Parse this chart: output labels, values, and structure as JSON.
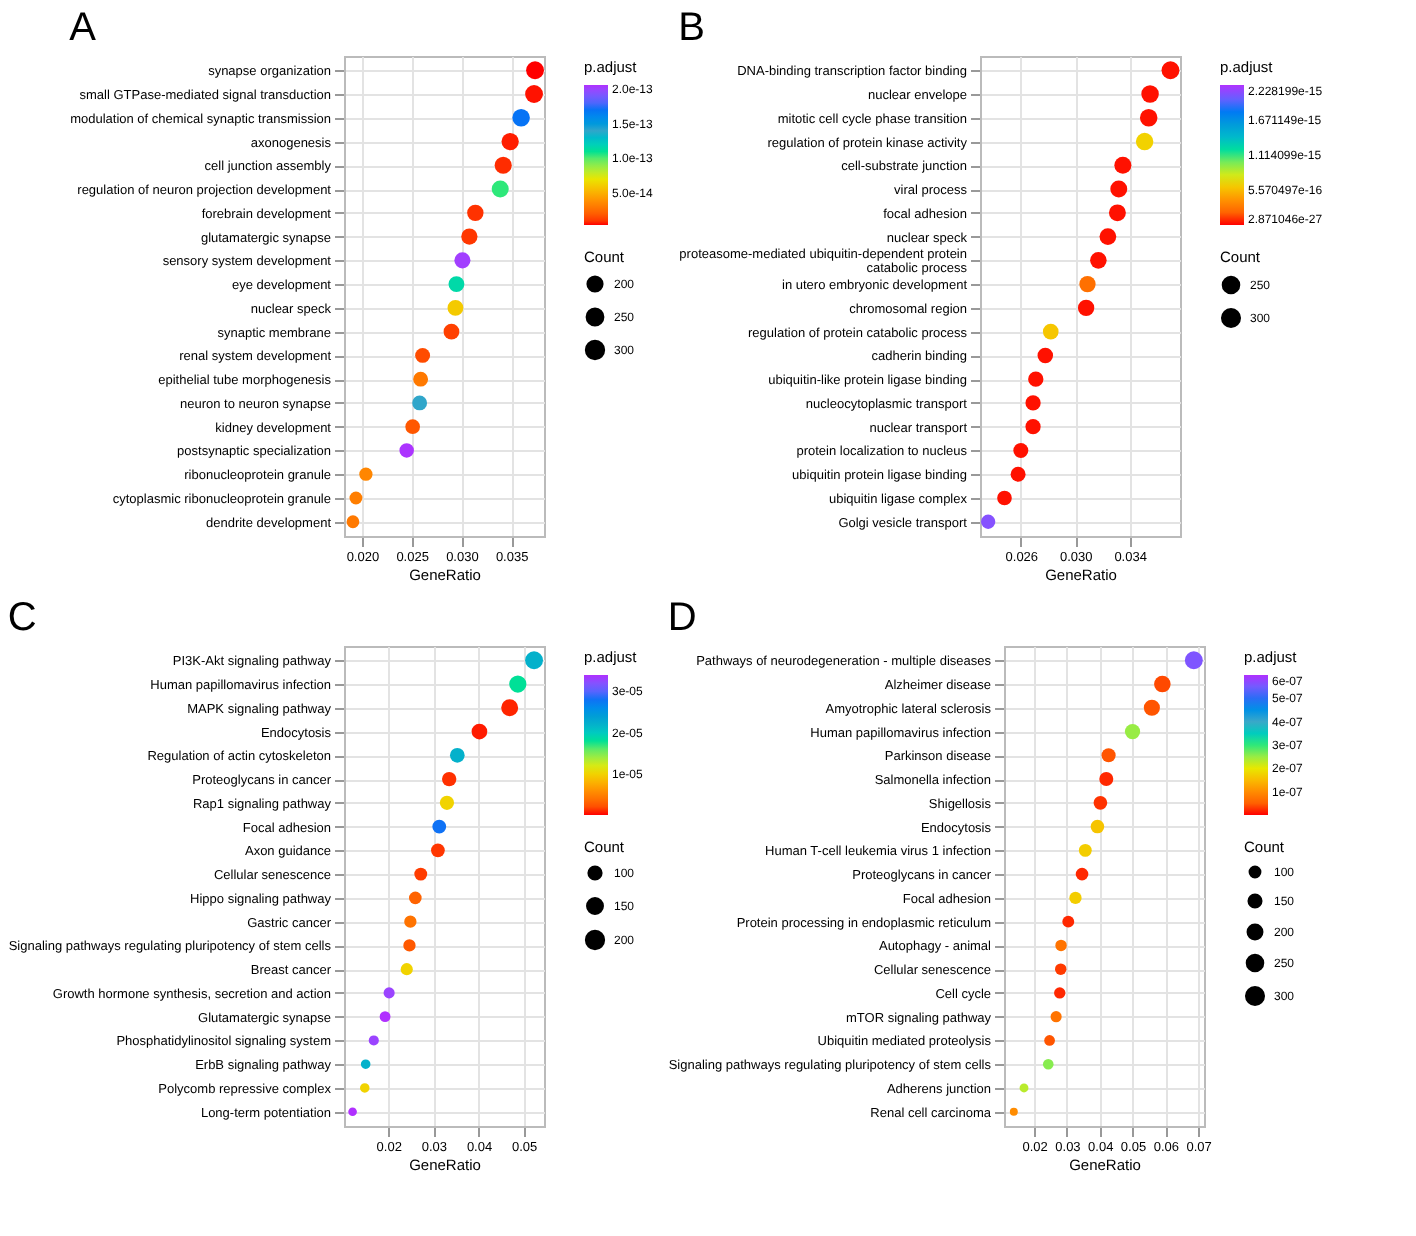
{
  "chart_data": [
    {
      "type": "scatter",
      "orientation": "horizontal",
      "title": "A",
      "xlabel": "GeneRatio",
      "clabel": "p.adjust",
      "legend_title": "Count",
      "grid": true,
      "categories": [
        "synapse organization",
        "small GTPase-mediated signal transduction",
        "modulation of chemical synaptic transmission",
        "axonogenesis",
        "cell junction assembly",
        "regulation of neuron projection development",
        "forebrain development",
        "glutamatergic synapse",
        "sensory system development",
        "eye development",
        "nuclear speck",
        "synaptic membrane",
        "renal system development",
        "epithelial tube morphogenesis",
        "neuron to neuron synapse",
        "kidney development",
        "postsynaptic specialization",
        "ribonucleoprotein granule",
        "cytoplasmic ribonucleoprotein granule",
        "dendrite development"
      ],
      "values": [
        0.0374,
        0.0373,
        0.036,
        0.0349,
        0.0342,
        0.0339,
        0.0314,
        0.0308,
        0.0301,
        0.0295,
        0.0294,
        0.029,
        0.0261,
        0.0259,
        0.0258,
        0.0251,
        0.0245,
        0.0204,
        0.0194,
        0.0191
      ],
      "sizes": [
        320,
        319,
        308,
        299,
        293,
        290,
        269,
        264,
        258,
        253,
        252,
        248,
        223,
        222,
        221,
        215,
        210,
        175,
        166,
        163
      ],
      "size_legend": [
        200,
        250,
        300
      ],
      "cvalues": [
        4e-15,
        5e-15,
        1.7e-13,
        6e-15,
        8e-15,
        1.05e-13,
        9e-15,
        1e-14,
        2.02e-13,
        1.15e-13,
        6e-14,
        1.2e-14,
        1.5e-14,
        3e-14,
        1.4e-13,
        1.8e-14,
        2.05e-13,
        3.5e-14,
        3.2e-14,
        3e-14
      ],
      "clim": [
        4e-15,
        2.06e-13
      ],
      "cticks": [
        {
          "value": 5e-14,
          "label": "5.0e-14"
        },
        {
          "value": 1e-13,
          "label": "1.0e-13"
        },
        {
          "value": 1.5e-13,
          "label": "1.5e-13"
        },
        {
          "value": 2e-13,
          "label": "2.0e-13"
        }
      ],
      "xlim": [
        0.0182,
        0.0383
      ],
      "xticks": [
        {
          "value": 0.02,
          "label": "0.020"
        },
        {
          "value": 0.025,
          "label": "0.025"
        },
        {
          "value": 0.03,
          "label": "0.030"
        },
        {
          "value": 0.035,
          "label": "0.035"
        }
      ]
    },
    {
      "type": "scatter",
      "orientation": "horizontal",
      "title": "B",
      "xlabel": "GeneRatio",
      "clabel": "p.adjust",
      "legend_title": "Count",
      "grid": true,
      "categories": [
        "DNA-binding transcription factor binding",
        "nuclear envelope",
        "mitotic cell cycle phase transition",
        "regulation of protein kinase activity",
        "cell-substrate junction",
        "viral process",
        "focal adhesion",
        "nuclear speck",
        "proteasome-mediated ubiquitin-dependent protein catabolic process",
        "in utero embryonic development",
        "chromosomal region",
        "regulation of protein catabolic process",
        "cadherin binding",
        "ubiquitin-like protein ligase binding",
        "nucleocytoplasmic transport",
        "nuclear transport",
        "protein localization to nucleus",
        "ubiquitin protein ligase binding",
        "ubiquitin ligase complex",
        "Golgi vesicle transport"
      ],
      "values": [
        0.037,
        0.0355,
        0.0354,
        0.0351,
        0.0335,
        0.0332,
        0.0331,
        0.0324,
        0.0317,
        0.0309,
        0.0308,
        0.0282,
        0.0278,
        0.0271,
        0.0269,
        0.0269,
        0.026,
        0.0258,
        0.0248,
        0.0236
      ],
      "sizes": [
        330,
        317,
        316,
        313,
        299,
        296,
        295,
        289,
        283,
        276,
        275,
        252,
        248,
        242,
        240,
        240,
        232,
        230,
        221,
        211
      ],
      "size_legend": [
        250,
        300
      ],
      "cvalues": [
        1e-17,
        1e-17,
        1e-17,
        6.5e-16,
        1e-17,
        1e-17,
        1e-17,
        1e-17,
        1e-17,
        2.5e-16,
        1e-17,
        6e-16,
        1e-17,
        1e-17,
        1e-17,
        1e-17,
        1e-17,
        1e-17,
        1e-17,
        2.1e-15
      ],
      "clim": [
        2.871046e-27,
        2.228199e-15
      ],
      "cticks": [
        {
          "value": 2.871046e-27,
          "label": "2.871046e-27"
        },
        {
          "value": 5.570497e-16,
          "label": "5.570497e-16"
        },
        {
          "value": 1.114099e-15,
          "label": "1.114099e-15"
        },
        {
          "value": 1.671149e-15,
          "label": "1.671149e-15"
        },
        {
          "value": 2.228199e-15,
          "label": "2.228199e-15"
        }
      ],
      "xlim": [
        0.023,
        0.0377
      ],
      "xticks": [
        0.026,
        {
          "value": 0.03,
          "label": "0.030"
        },
        0.034
      ]
    },
    {
      "type": "scatter",
      "orientation": "horizontal",
      "title": "C",
      "xlabel": "GeneRatio",
      "clabel": "p.adjust",
      "legend_title": "Count",
      "grid": true,
      "categories": [
        "PI3K-Akt signaling pathway",
        "Human papillomavirus infection",
        "MAPK signaling pathway",
        "Endocytosis",
        "Regulation of actin cytoskeleton",
        "Proteoglycans in cancer",
        "Rap1 signaling pathway",
        "Focal adhesion",
        "Axon guidance",
        "Cellular senescence",
        "Hippo signaling pathway",
        "Gastric cancer",
        "Signaling pathways regulating pluripotency of stem cells",
        "Breast cancer",
        "Growth hormone synthesis, secretion and action",
        "Glutamatergic synapse",
        "Phosphatidylinositol signaling system",
        "ErbB signaling pathway",
        "Polycomb repressive complex",
        "Long-term potentiation"
      ],
      "values": [
        0.0523,
        0.0487,
        0.0469,
        0.0402,
        0.0353,
        0.0335,
        0.033,
        0.0313,
        0.031,
        0.0272,
        0.026,
        0.0249,
        0.0247,
        0.0241,
        0.0202,
        0.0193,
        0.0168,
        0.015,
        0.0148,
        0.0121
      ],
      "sizes": [
        215,
        200,
        193,
        165,
        145,
        138,
        136,
        129,
        127,
        112,
        107,
        102,
        102,
        99,
        83,
        79,
        69,
        62,
        61,
        50
      ],
      "size_legend": [
        100,
        150,
        200
      ],
      "cvalues": [
        2.2e-05,
        1.8e-05,
        5e-07,
        3e-07,
        2.2e-05,
        8e-07,
        1e-05,
        2.8e-05,
        1e-06,
        1.2e-06,
        3e-06,
        4e-06,
        2.5e-06,
        1e-05,
        3.3e-05,
        3.4e-05,
        3.3e-05,
        2.2e-05,
        1e-05,
        3.4e-05
      ],
      "clim": [
        0,
        3.4e-05
      ],
      "cticks": [
        1e-05,
        2e-05,
        3e-05
      ],
      "xlim": [
        0.0102,
        0.0545
      ],
      "xticks": [
        0.02,
        0.03,
        0.04,
        0.05
      ]
    },
    {
      "type": "scatter",
      "orientation": "horizontal",
      "title": "D",
      "xlabel": "GeneRatio",
      "clabel": "p.adjust",
      "legend_title": "Count",
      "grid": true,
      "categories": [
        "Pathways of neurodegeneration - multiple diseases",
        "Alzheimer disease",
        "Amyotrophic lateral sclerosis",
        "Human papillomavirus infection",
        "Parkinson disease",
        "Salmonella infection",
        "Shigellosis",
        "Endocytosis",
        "Human T-cell leukemia virus 1 infection",
        "Proteoglycans in cancer",
        "Focal adhesion",
        "Protein processing in endoplasmic reticulum",
        "Autophagy - animal",
        "Cellular senescence",
        "Cell cycle",
        "mTOR signaling pathway",
        "Ubiquitin mediated proteolysis",
        "Signaling pathways regulating pluripotency of stem cells",
        "Adherens junction",
        "Renal cell carcinoma"
      ],
      "values": [
        0.0687,
        0.0591,
        0.0559,
        0.05,
        0.0427,
        0.042,
        0.0402,
        0.0393,
        0.0356,
        0.0346,
        0.0326,
        0.0304,
        0.0282,
        0.0281,
        0.0278,
        0.0267,
        0.0247,
        0.0243,
        0.0169,
        0.0138
      ],
      "sizes": [
        330,
        284,
        268,
        240,
        205,
        202,
        193,
        189,
        171,
        166,
        156,
        146,
        135,
        135,
        133,
        128,
        119,
        117,
        81,
        66
      ],
      "size_legend": [
        100,
        150,
        200,
        250,
        300
      ],
      "cvalues": [
        5.6e-07,
        3e-08,
        4e-08,
        2.5e-07,
        4e-08,
        1e-08,
        1.5e-08,
        1.6e-07,
        1.7e-07,
        1e-08,
        1.7e-07,
        1e-08,
        7e-08,
        2e-08,
        1e-08,
        7e-08,
        4e-08,
        2.6e-07,
        2.3e-07,
        1e-07
      ],
      "clim": [
        0,
        6e-07
      ],
      "cticks": [
        1e-07,
        2e-07,
        3e-07,
        4e-07,
        5e-07,
        6e-07
      ],
      "xlim": [
        0.0108,
        0.0718
      ],
      "xticks": [
        0.02,
        0.03,
        0.04,
        0.05,
        0.06,
        0.07
      ]
    }
  ]
}
